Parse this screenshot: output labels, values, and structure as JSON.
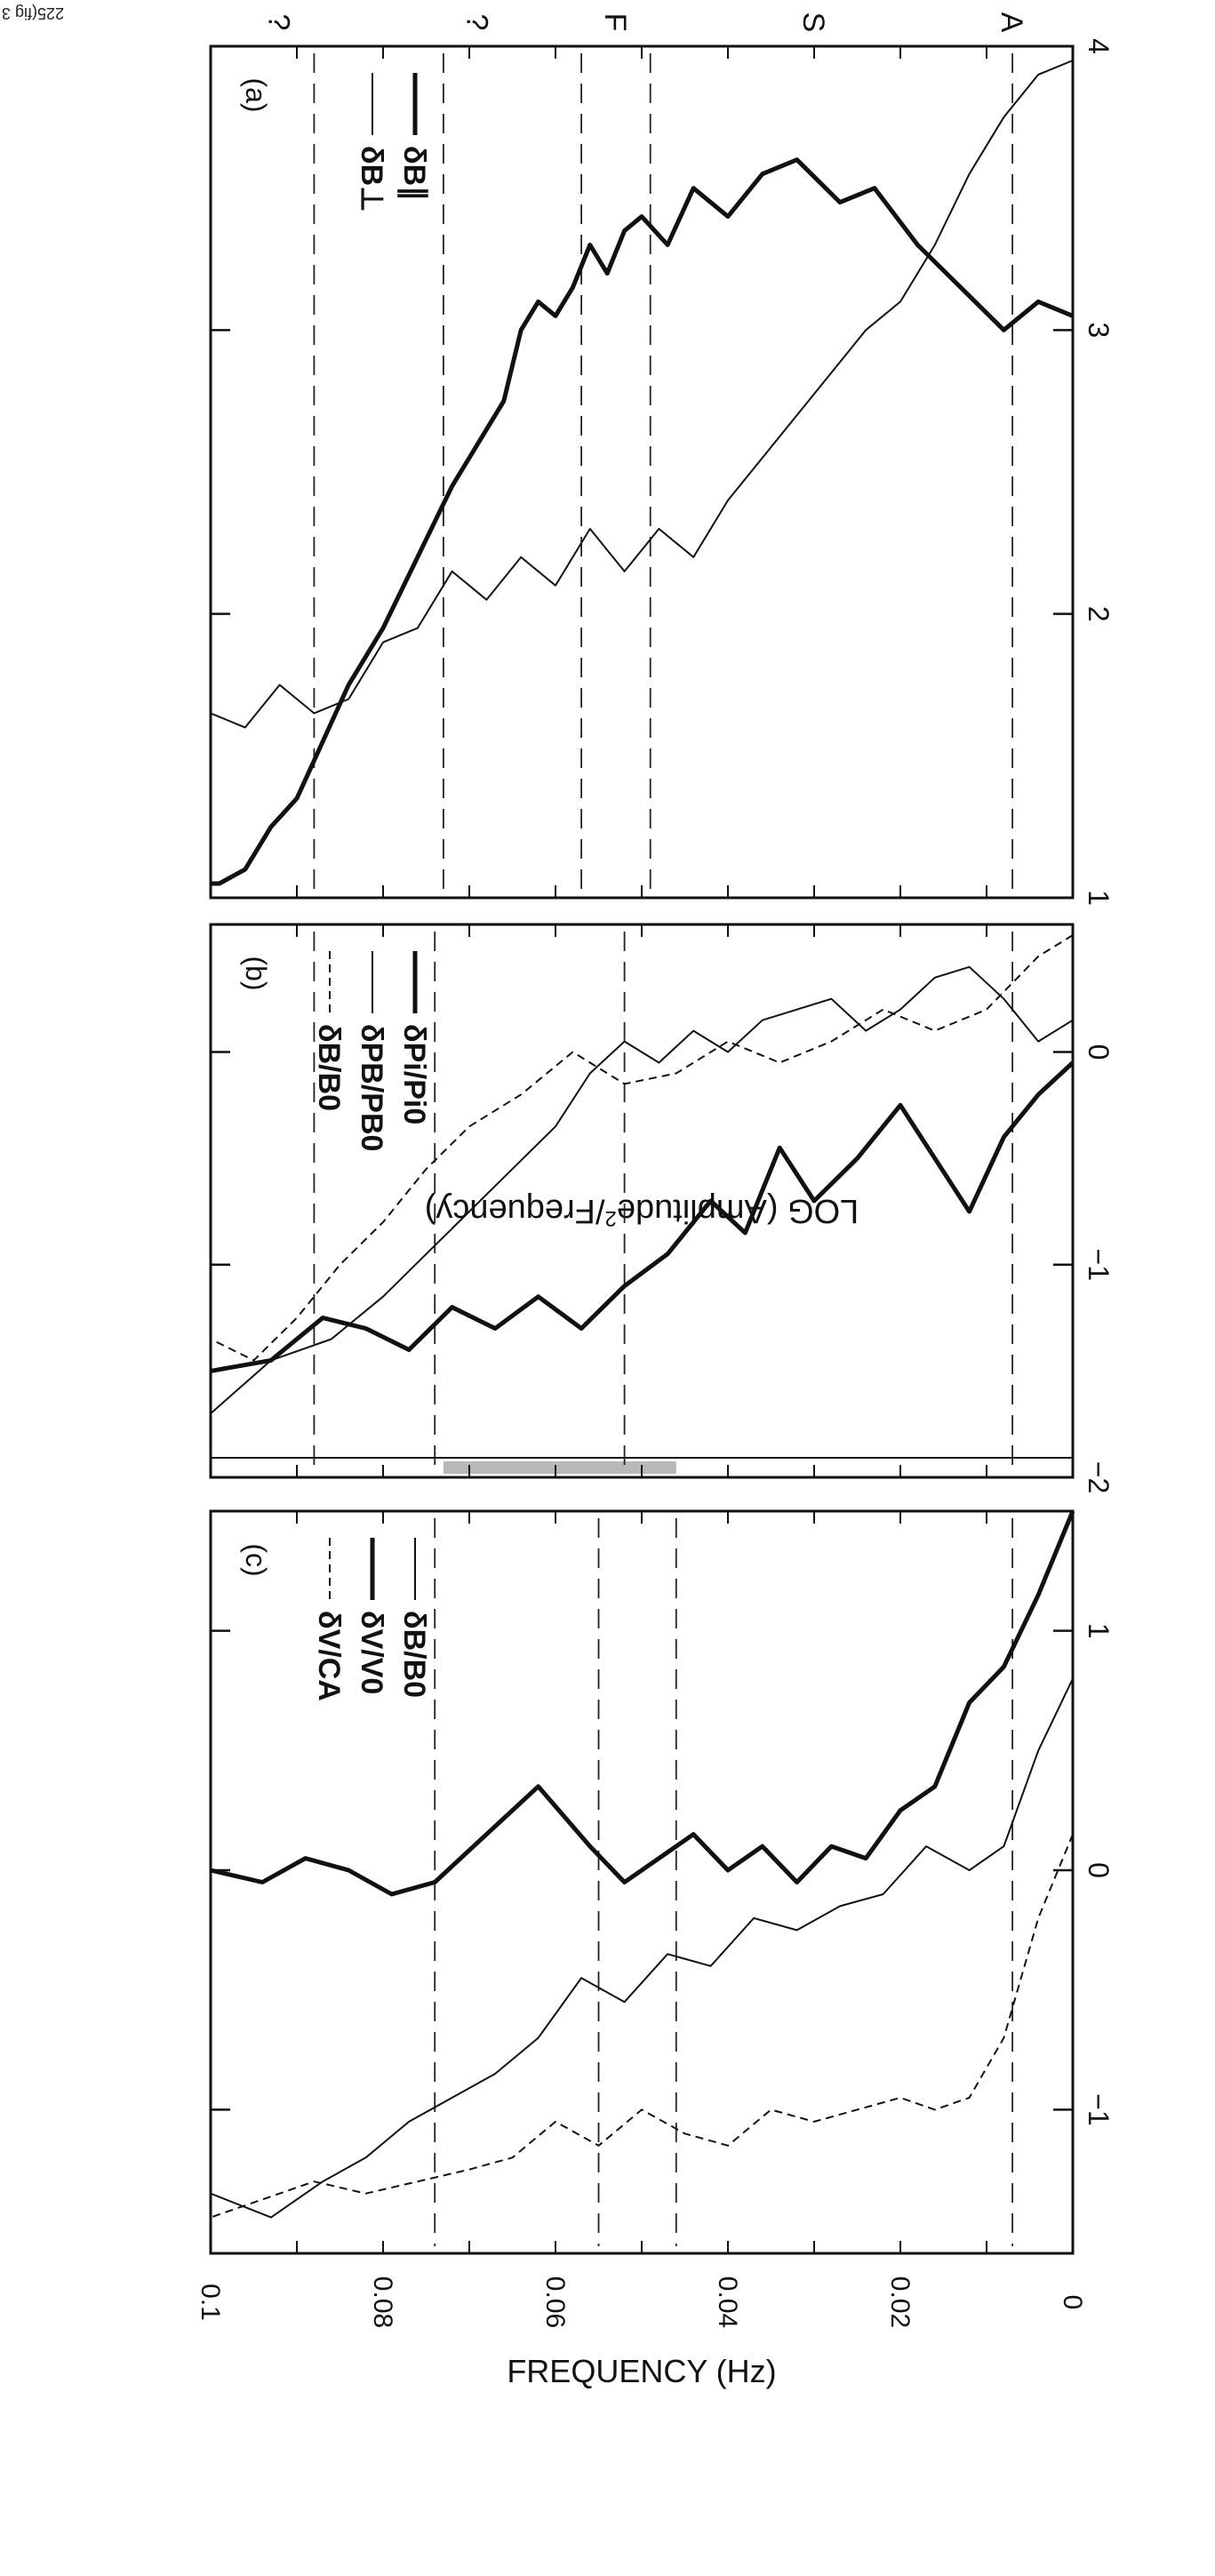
{
  "page": {
    "corner_note": "225(fig 3"
  },
  "figure": {
    "y_axis_label": "FREQUENCY (Hz)",
    "x_axis_label_prefix": "LOG (Amplitude",
    "x_axis_label_suffix": "/Frequency)",
    "x_axis_label_sup": "2",
    "y_ticks": [
      "0",
      "0.02",
      "0.04",
      "0.06",
      "0.08",
      "0.1"
    ],
    "band_labels": [
      "A",
      "S",
      "F",
      "?",
      "?"
    ]
  },
  "chart_data": [
    {
      "type": "line",
      "panel": "(a)",
      "ylabel": "FREQUENCY (Hz)",
      "xlabel": "LOG (Amplitude²/Frequency)",
      "xlim": [
        4,
        1
      ],
      "ylim": [
        0,
        0.1
      ],
      "x_ticks": [
        "4",
        "3",
        "2",
        "1"
      ],
      "dashed_frequencies": [
        0.007,
        0.049,
        0.057,
        0.073,
        0.088
      ],
      "series": [
        {
          "name": "δB∥",
          "style": "thick",
          "x": [
            3.05,
            3.1,
            3.0,
            3.15,
            3.3,
            3.5,
            3.45,
            3.6,
            3.55,
            3.4,
            3.5,
            3.3,
            3.4,
            3.35,
            3.2,
            3.3,
            3.15,
            3.05,
            3.1,
            3.0,
            2.75,
            2.6,
            2.45,
            2.2,
            1.95,
            1.75,
            1.55,
            1.35,
            1.25,
            1.1,
            1.05,
            1.05
          ],
          "y": [
            0.0,
            0.004,
            0.008,
            0.013,
            0.018,
            0.023,
            0.027,
            0.032,
            0.036,
            0.04,
            0.044,
            0.047,
            0.05,
            0.052,
            0.054,
            0.056,
            0.058,
            0.06,
            0.062,
            0.064,
            0.066,
            0.069,
            0.072,
            0.076,
            0.08,
            0.084,
            0.087,
            0.09,
            0.093,
            0.096,
            0.099,
            0.1
          ]
        },
        {
          "name": "δB⊥",
          "style": "thin",
          "x": [
            3.95,
            3.9,
            3.75,
            3.55,
            3.3,
            3.1,
            3.0,
            2.85,
            2.7,
            2.55,
            2.4,
            2.2,
            2.3,
            2.15,
            2.3,
            2.1,
            2.2,
            2.05,
            2.15,
            1.95,
            1.9,
            1.7,
            1.65,
            1.75,
            1.6,
            1.65
          ],
          "y": [
            0.0,
            0.004,
            0.008,
            0.012,
            0.016,
            0.02,
            0.024,
            0.028,
            0.032,
            0.036,
            0.04,
            0.044,
            0.048,
            0.052,
            0.056,
            0.06,
            0.064,
            0.068,
            0.072,
            0.076,
            0.08,
            0.084,
            0.088,
            0.092,
            0.096,
            0.1
          ]
        }
      ]
    },
    {
      "type": "line",
      "panel": "(b)",
      "ylabel": "FREQUENCY (Hz)",
      "xlabel": "LOG (Amplitude²/Frequency)",
      "xlim": [
        0.6,
        -2
      ],
      "ylim": [
        0,
        0.1
      ],
      "x_ticks": [
        "0",
        "-1",
        "-2"
      ],
      "shaded_band": [
        0.046,
        0.073
      ],
      "dashed_frequencies": [
        0.007,
        0.052,
        0.074,
        0.088
      ],
      "series": [
        {
          "name": "δPi/Pi0",
          "style": "thick",
          "x": [
            -0.05,
            -0.2,
            -0.4,
            -0.75,
            -0.5,
            -0.25,
            -0.5,
            -0.7,
            -0.45,
            -0.85,
            -0.7,
            -0.95,
            -1.1,
            -1.3,
            -1.15,
            -1.3,
            -1.2,
            -1.4,
            -1.3,
            -1.25,
            -1.45,
            -1.5
          ],
          "y": [
            0.0,
            0.004,
            0.008,
            0.012,
            0.016,
            0.02,
            0.025,
            0.03,
            0.034,
            0.038,
            0.042,
            0.047,
            0.052,
            0.057,
            0.062,
            0.067,
            0.072,
            0.077,
            0.082,
            0.087,
            0.093,
            0.1
          ]
        },
        {
          "name": "δPB/PB0",
          "style": "thin",
          "x": [
            0.15,
            0.05,
            0.25,
            0.4,
            0.35,
            0.2,
            0.1,
            0.25,
            0.2,
            0.15,
            0.0,
            0.1,
            -0.05,
            0.05,
            -0.1,
            -0.35,
            -0.55,
            -0.75,
            -0.95,
            -1.15,
            -1.35,
            -1.45,
            -1.7
          ],
          "y": [
            0.0,
            0.004,
            0.008,
            0.012,
            0.016,
            0.02,
            0.024,
            0.028,
            0.032,
            0.036,
            0.04,
            0.044,
            0.048,
            0.052,
            0.056,
            0.06,
            0.065,
            0.07,
            0.075,
            0.08,
            0.086,
            0.093,
            0.1
          ]
        },
        {
          "name": "δB/B0",
          "style": "dashed",
          "x": [
            0.55,
            0.45,
            0.2,
            0.1,
            0.2,
            0.05,
            -0.05,
            0.05,
            -0.1,
            -0.15,
            0.0,
            -0.2,
            -0.35,
            -0.55,
            -0.8,
            -1.0,
            -1.25,
            -1.45,
            -1.35
          ],
          "y": [
            0.0,
            0.004,
            0.01,
            0.016,
            0.022,
            0.028,
            0.034,
            0.04,
            0.046,
            0.052,
            0.058,
            0.064,
            0.07,
            0.075,
            0.08,
            0.085,
            0.09,
            0.095,
            0.1
          ]
        }
      ]
    },
    {
      "type": "line",
      "panel": "(c)",
      "ylabel": "FREQUENCY (Hz)",
      "xlabel": "LOG (Amplitude²/Frequency)",
      "xlim": [
        1.5,
        -1.6
      ],
      "ylim": [
        0,
        0.1
      ],
      "x_ticks": [
        "1",
        "0",
        "-1"
      ],
      "dashed_frequencies": [
        0.007,
        0.046,
        0.055,
        0.074
      ],
      "series": [
        {
          "name": "δB/B0",
          "style": "thin",
          "x": [
            0.8,
            0.5,
            0.1,
            0.0,
            0.1,
            -0.1,
            -0.15,
            -0.25,
            -0.2,
            -0.4,
            -0.35,
            -0.55,
            -0.45,
            -0.7,
            -0.85,
            -0.95,
            -1.05,
            -1.2,
            -1.3,
            -1.45,
            -1.35
          ],
          "y": [
            0.0,
            0.004,
            0.008,
            0.012,
            0.017,
            0.022,
            0.027,
            0.032,
            0.037,
            0.042,
            0.047,
            0.052,
            0.057,
            0.062,
            0.067,
            0.072,
            0.077,
            0.082,
            0.087,
            0.093,
            0.1
          ]
        },
        {
          "name": "δV/V0",
          "style": "thick",
          "x": [
            1.5,
            1.15,
            0.85,
            0.7,
            0.35,
            0.25,
            0.05,
            0.1,
            -0.05,
            0.1,
            0.0,
            0.15,
            0.05,
            -0.05,
            0.1,
            0.35,
            0.15,
            -0.05,
            -0.1,
            0.0,
            0.05,
            -0.05,
            0.0
          ],
          "y": [
            0.0,
            0.004,
            0.008,
            0.012,
            0.016,
            0.02,
            0.024,
            0.028,
            0.032,
            0.036,
            0.04,
            0.044,
            0.048,
            0.052,
            0.056,
            0.062,
            0.068,
            0.074,
            0.079,
            0.084,
            0.089,
            0.094,
            0.1
          ]
        },
        {
          "name": "δV/CA",
          "style": "dashed",
          "x": [
            0.15,
            -0.2,
            -0.7,
            -0.95,
            -1.0,
            -0.95,
            -1.0,
            -1.05,
            -1.0,
            -1.15,
            -1.1,
            -1.0,
            -1.15,
            -1.05,
            -1.2,
            -1.25,
            -1.3,
            -1.35,
            -1.3,
            -1.45
          ],
          "y": [
            0.0,
            0.004,
            0.008,
            0.012,
            0.016,
            0.02,
            0.025,
            0.03,
            0.035,
            0.04,
            0.045,
            0.05,
            0.055,
            0.06,
            0.065,
            0.07,
            0.076,
            0.082,
            0.088,
            0.1
          ]
        }
      ]
    }
  ]
}
